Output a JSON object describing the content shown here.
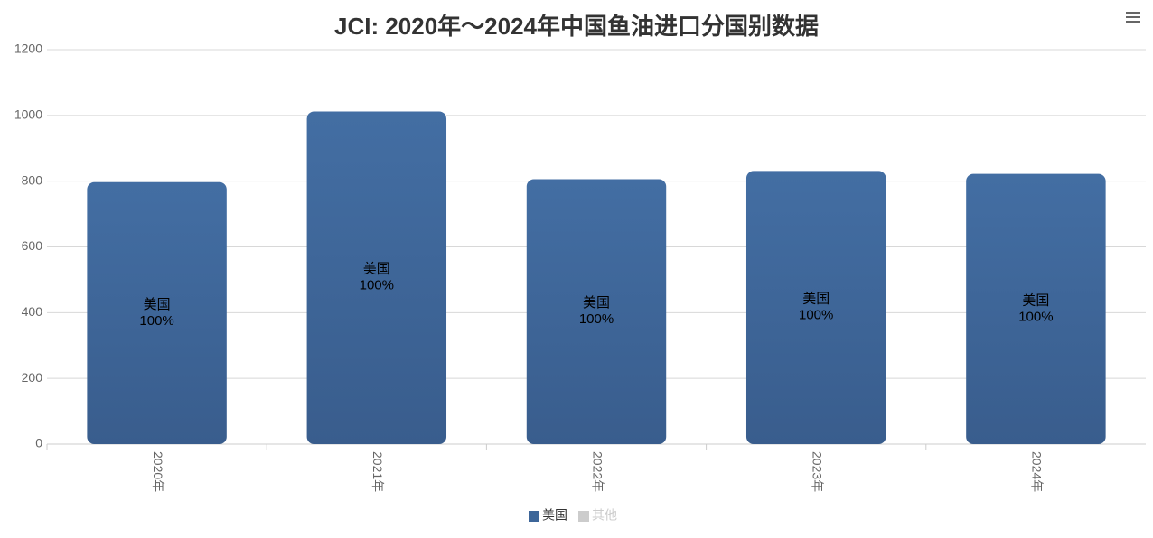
{
  "chart_data": {
    "type": "bar",
    "title": "JCI: 2020年～2024年中国鱼油进口分国别数据",
    "categories": [
      "2020年",
      "2021年",
      "2022年",
      "2023年",
      "2024年"
    ],
    "series": [
      {
        "name": "美国",
        "color": "#3d6699",
        "values": [
          797,
          1012,
          806,
          831,
          822
        ],
        "share_labels": [
          "100%",
          "100%",
          "100%",
          "100%",
          "100%"
        ],
        "visible": true
      },
      {
        "name": "其他",
        "color": "#cccccc",
        "values": [
          0,
          0,
          0,
          0,
          0
        ],
        "visible": false
      }
    ],
    "stacked": true,
    "ylim": [
      0,
      1200
    ],
    "yticks": [
      0,
      200,
      400,
      600,
      800,
      1000,
      1200
    ],
    "grid": true
  }
}
